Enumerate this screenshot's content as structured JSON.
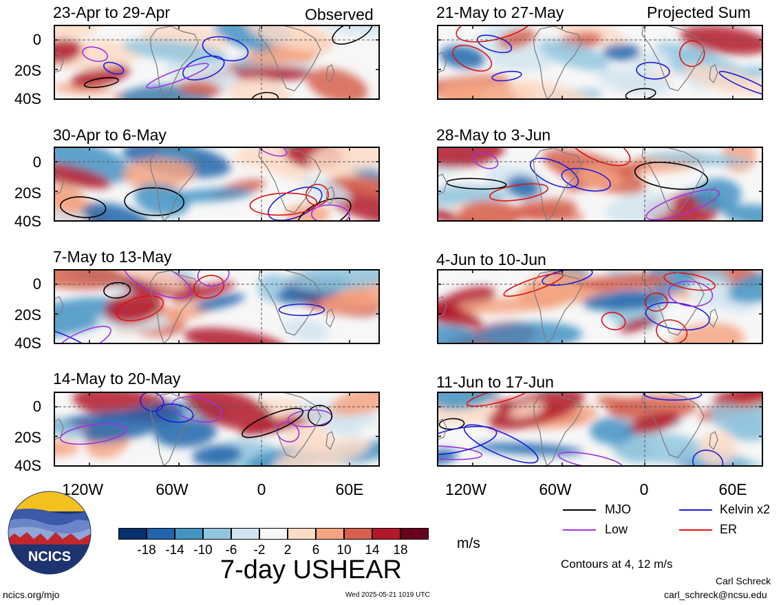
{
  "header": {
    "left_label": "Observed",
    "right_label": "Projected Sum"
  },
  "panels_left": [
    {
      "title": "23-Apr to 29-Apr"
    },
    {
      "title": "30-Apr to 6-May"
    },
    {
      "title": "7-May to 13-May"
    },
    {
      "title": "14-May to 20-May"
    }
  ],
  "panels_right": [
    {
      "title": "21-May to 27-May"
    },
    {
      "title": "28-May to 3-Jun"
    },
    {
      "title": "4-Jun to 10-Jun"
    },
    {
      "title": "11-Jun to 17-Jun"
    }
  ],
  "axes": {
    "y_ticks": [
      "0",
      "20S",
      "40S"
    ],
    "x_ticks": [
      "120W",
      "60W",
      "0",
      "60E"
    ]
  },
  "legend": {
    "items": [
      {
        "label": "MJO",
        "color": "#000000"
      },
      {
        "label": "Kelvin x2",
        "color": "#1a1adc"
      },
      {
        "label": "Low",
        "color": "#a030e0"
      },
      {
        "label": "ER",
        "color": "#e01010"
      }
    ],
    "contours_note": "Contours at 4, 12 m/s"
  },
  "colorbar": {
    "colors": [
      "#08306b",
      "#2166ac",
      "#4393c3",
      "#92c5de",
      "#d1e5f0",
      "#f7f7f7",
      "#fddbc7",
      "#f4a582",
      "#d6604d",
      "#b2182b",
      "#67001f"
    ],
    "ticks": [
      "-18",
      "-14",
      "-10",
      "-6",
      "-2",
      "2",
      "6",
      "10",
      "14",
      "18"
    ],
    "unit": "m/s"
  },
  "main_title": "7-day USHEAR",
  "logo_text": "NCICS",
  "footer": {
    "url": "ncics.org/mjo",
    "timestamp": "Wed 2025-05-21 1019 UTC",
    "author": "Carl Schreck",
    "email": "carl_schreck@ncsu.edu"
  }
}
